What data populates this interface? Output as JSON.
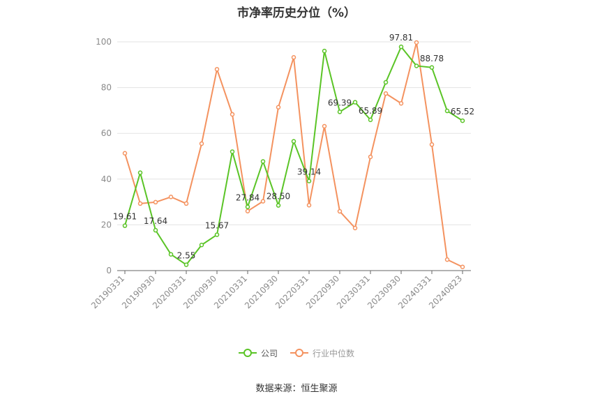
{
  "chart_data": {
    "type": "line",
    "title": "市净率历史分位（%）",
    "x": [
      "20190331",
      "20190630",
      "20190930",
      "20191231",
      "20200331",
      "20200630",
      "20200930",
      "20201231",
      "20210331",
      "20210630",
      "20210930",
      "20211231",
      "20220331",
      "20220630",
      "20220930",
      "20221231",
      "20230331",
      "20230630",
      "20230930",
      "20231231",
      "20240331",
      "20240630",
      "20240823"
    ],
    "x_tick_labels": [
      "20190331",
      "20190930",
      "20200331",
      "20200930",
      "20210331",
      "20210930",
      "20220331",
      "20220930",
      "20230331",
      "20230930",
      "20240331",
      "20240823"
    ],
    "ylim": [
      0,
      100
    ],
    "yticks": [
      0,
      20,
      40,
      60,
      80,
      100
    ],
    "grid": true,
    "legend_position": "bottom",
    "series": [
      {
        "name": "公司",
        "color": "#5ac426",
        "values": [
          19.61,
          42.8,
          17.64,
          7.1,
          2.55,
          11.2,
          15.67,
          52.0,
          27.84,
          47.7,
          28.5,
          56.5,
          39.14,
          96.0,
          69.39,
          73.6,
          65.89,
          82.3,
          97.81,
          89.5,
          88.78,
          69.8,
          65.52
        ],
        "labels": {
          "0": "19.61",
          "2": "17.64",
          "4": "2.55",
          "6": "15.67",
          "8": "27.84",
          "10": "28.50",
          "12": "39.14",
          "14": "69.39",
          "16": "65.89",
          "18": "97.81",
          "20": "88.78",
          "22": "65.52"
        }
      },
      {
        "name": "行业中位数",
        "color": "#f4925f",
        "values": [
          51.3,
          29.3,
          29.9,
          32.2,
          29.3,
          55.5,
          88.0,
          68.3,
          26.0,
          30.3,
          71.4,
          93.2,
          28.6,
          63.1,
          25.9,
          18.6,
          49.7,
          77.4,
          73.1,
          99.7,
          55.1,
          4.8,
          1.6
        ]
      }
    ]
  },
  "source": "数据来源：恒生聚源"
}
